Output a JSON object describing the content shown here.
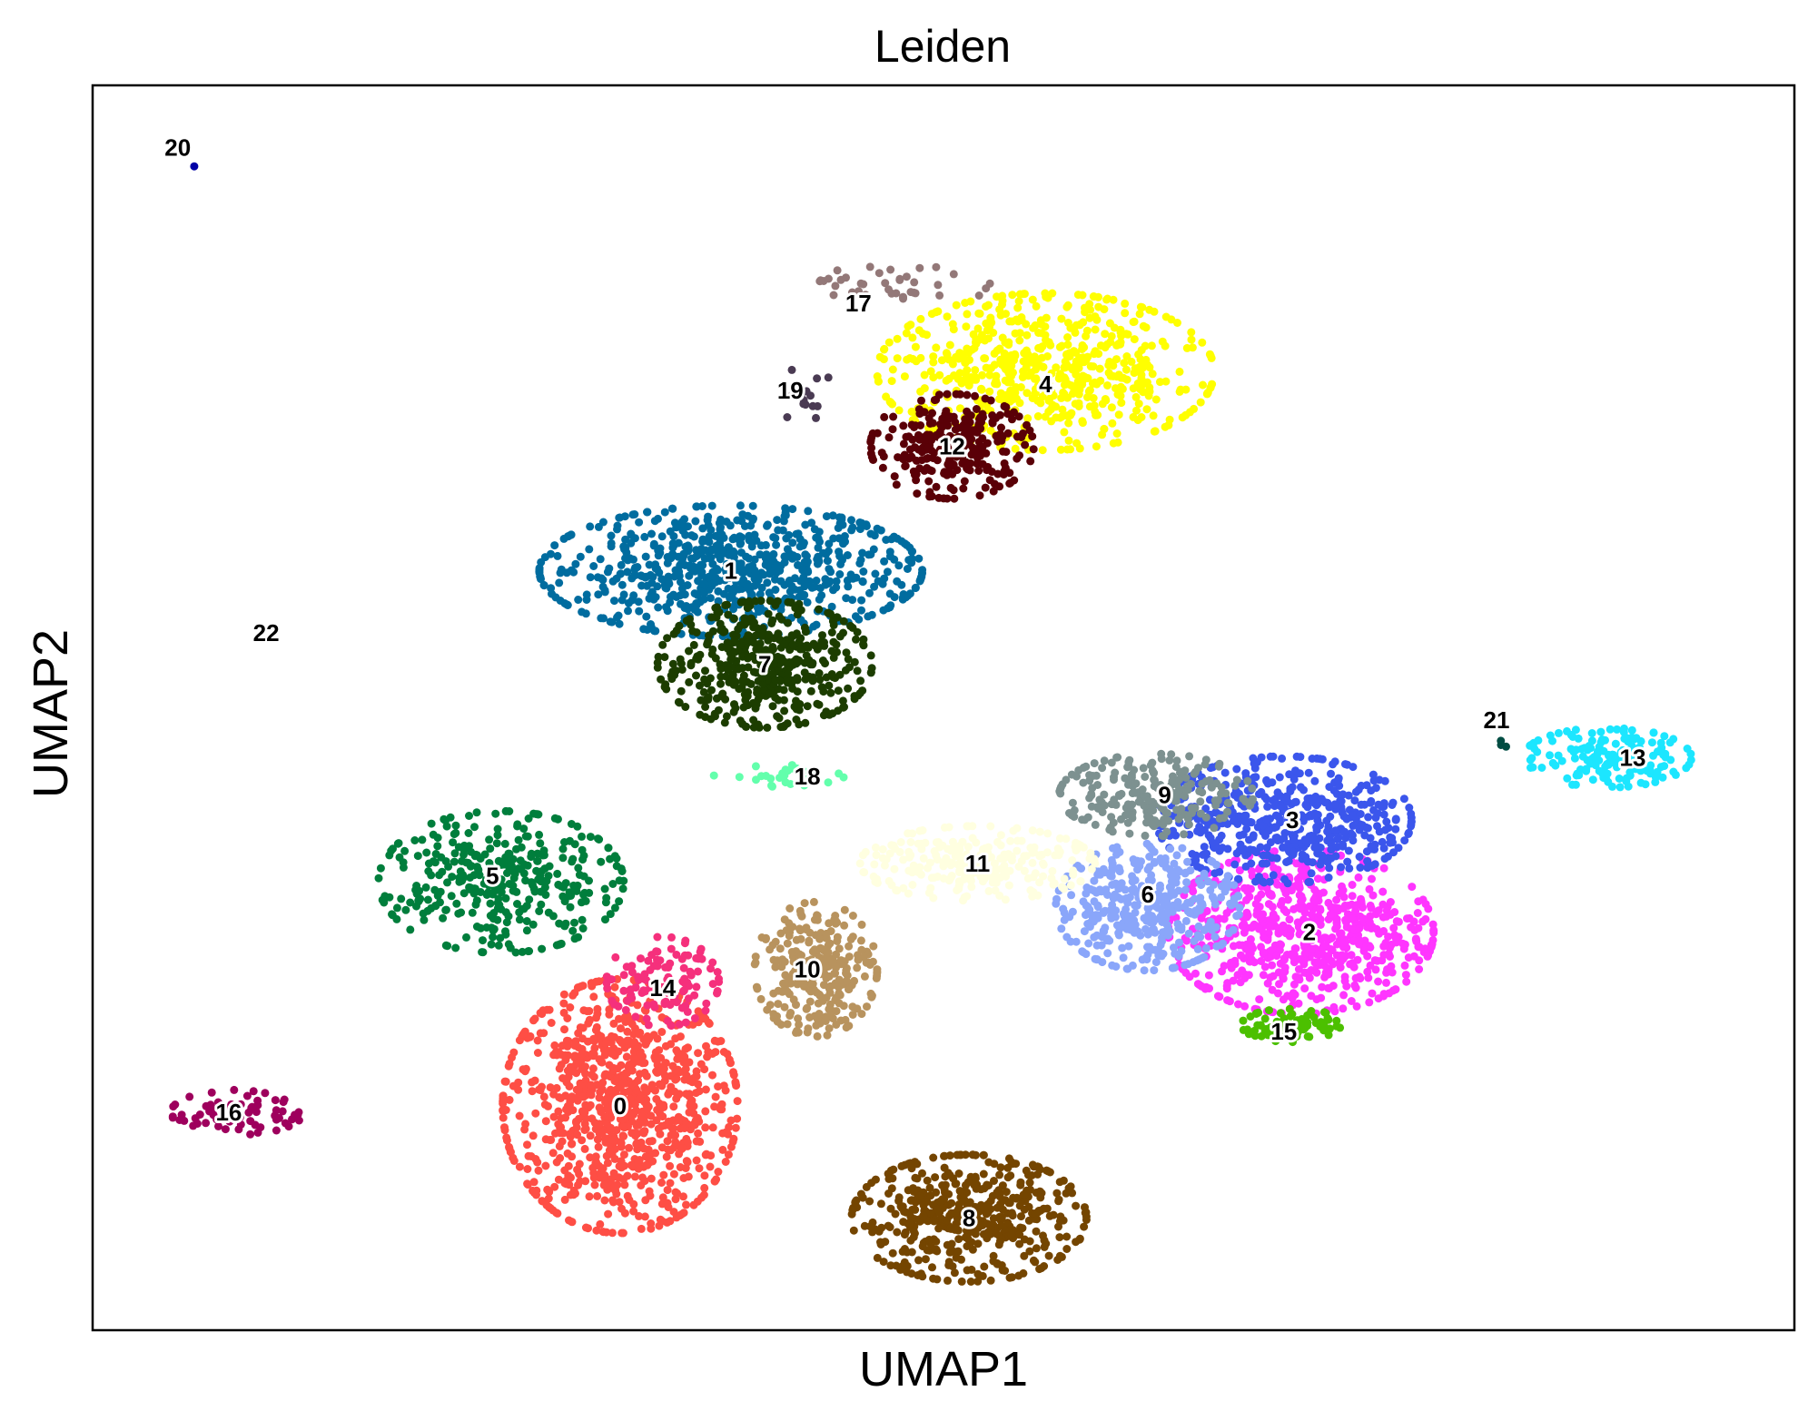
{
  "chart_data": {
    "type": "scatter",
    "title": "Leiden",
    "xlabel": "UMAP1",
    "ylabel": "UMAP2",
    "xlim": [
      0,
      100
    ],
    "ylim": [
      0,
      100
    ],
    "grid": false,
    "ticks": false,
    "point_radius_units": 0.24,
    "clusters": [
      {
        "name": "0",
        "color": "#fe4e45",
        "center": [
          31.0,
          18.0
        ],
        "spread": [
          4.6,
          6.8
        ],
        "n": 900,
        "label_pos": [
          31.0,
          18.0
        ]
      },
      {
        "name": "1",
        "color": "#006c9f",
        "center": [
          37.5,
          61.0
        ],
        "spread": [
          7.5,
          3.5
        ],
        "n": 700,
        "label_pos": [
          37.5,
          61.0
        ]
      },
      {
        "name": "2",
        "color": "#ff35ff",
        "center": [
          71.0,
          32.0
        ],
        "spread": [
          5.2,
          4.4
        ],
        "n": 650,
        "label_pos": [
          71.5,
          32.0
        ]
      },
      {
        "name": "3",
        "color": "#3b56ec",
        "center": [
          70.0,
          41.0
        ],
        "spread": [
          5.0,
          3.4
        ],
        "n": 500,
        "label_pos": [
          70.5,
          41.0
        ]
      },
      {
        "name": "4",
        "color": "#ffff00",
        "center": [
          56.0,
          77.0
        ],
        "spread": [
          6.6,
          4.2
        ],
        "n": 600,
        "label_pos": [
          56.0,
          76.0
        ]
      },
      {
        "name": "5",
        "color": "#007e3c",
        "center": [
          24.0,
          36.0
        ],
        "spread": [
          4.8,
          3.8
        ],
        "n": 350,
        "label_pos": [
          23.5,
          36.5
        ]
      },
      {
        "name": "6",
        "color": "#8aa6fa",
        "center": [
          62.0,
          34.0
        ],
        "spread": [
          3.6,
          3.4
        ],
        "n": 380,
        "label_pos": [
          62.0,
          35.0
        ]
      },
      {
        "name": "7",
        "color": "#1c3d00",
        "center": [
          39.5,
          53.5
        ],
        "spread": [
          4.2,
          3.4
        ],
        "n": 450,
        "label_pos": [
          39.5,
          53.5
        ]
      },
      {
        "name": "8",
        "color": "#744500",
        "center": [
          51.5,
          9.0
        ],
        "spread": [
          4.6,
          3.4
        ],
        "n": 480,
        "label_pos": [
          51.5,
          9.0
        ]
      },
      {
        "name": "9",
        "color": "#7d9190",
        "center": [
          62.5,
          43.0
        ],
        "spread": [
          3.8,
          2.2
        ],
        "n": 220,
        "label_pos": [
          63.0,
          43.0
        ]
      },
      {
        "name": "10",
        "color": "#b8935e",
        "center": [
          42.5,
          29.0
        ],
        "spread": [
          2.4,
          3.6
        ],
        "n": 260,
        "label_pos": [
          42.0,
          29.0
        ]
      },
      {
        "name": "11",
        "color": "#ffffe0",
        "center": [
          52.0,
          37.5
        ],
        "spread": [
          4.6,
          2.0
        ],
        "n": 250,
        "label_pos": [
          52.0,
          37.5
        ]
      },
      {
        "name": "12",
        "color": "#5a0007",
        "center": [
          50.5,
          71.0
        ],
        "spread": [
          3.2,
          2.8
        ],
        "n": 260,
        "label_pos": [
          50.5,
          71.0
        ]
      },
      {
        "name": "13",
        "color": "#1ce6ff",
        "center": [
          89.0,
          46.0
        ],
        "spread": [
          3.3,
          1.6
        ],
        "n": 160,
        "label_pos": [
          90.5,
          46.0
        ]
      },
      {
        "name": "14",
        "color": "#f5307c",
        "center": [
          33.5,
          28.0
        ],
        "spread": [
          2.2,
          2.4
        ],
        "n": 110,
        "label_pos": [
          33.5,
          27.5
        ]
      },
      {
        "name": "15",
        "color": "#4cc000",
        "center": [
          70.5,
          24.5
        ],
        "spread": [
          2.0,
          0.9
        ],
        "n": 90,
        "label_pos": [
          70.0,
          24.0
        ]
      },
      {
        "name": "16",
        "color": "#9e005d",
        "center": [
          8.5,
          17.5
        ],
        "spread": [
          2.6,
          1.2
        ],
        "n": 70,
        "label_pos": [
          8.0,
          17.5
        ]
      },
      {
        "name": "17",
        "color": "#937878",
        "center": [
          47.5,
          84.0
        ],
        "spread": [
          3.8,
          1.0
        ],
        "n": 40,
        "label_pos": [
          45.0,
          82.5
        ]
      },
      {
        "name": "18",
        "color": "#63ffac",
        "center": [
          41.0,
          44.5
        ],
        "spread": [
          3.0,
          0.6
        ],
        "n": 30,
        "label_pos": [
          42.0,
          44.5
        ]
      },
      {
        "name": "19",
        "color": "#4a3b53",
        "center": [
          42.0,
          75.0
        ],
        "spread": [
          1.0,
          1.8
        ],
        "n": 16,
        "label_pos": [
          41.0,
          75.5
        ]
      },
      {
        "name": "20",
        "color": "#0000a6",
        "center": [
          6.0,
          93.5
        ],
        "spread": [
          0.05,
          0.05
        ],
        "n": 1,
        "label_pos": [
          5.0,
          95.0
        ]
      },
      {
        "name": "21",
        "color": "#004d43",
        "center": [
          82.7,
          47.0
        ],
        "spread": [
          0.3,
          0.4
        ],
        "n": 3,
        "label_pos": [
          82.5,
          49.0
        ]
      },
      {
        "name": "22",
        "color": "#ffffff",
        "center": [
          10.2,
          56.0
        ],
        "spread": [
          0.05,
          0.05
        ],
        "n": 0,
        "label_pos": [
          10.2,
          56.0
        ]
      }
    ]
  }
}
